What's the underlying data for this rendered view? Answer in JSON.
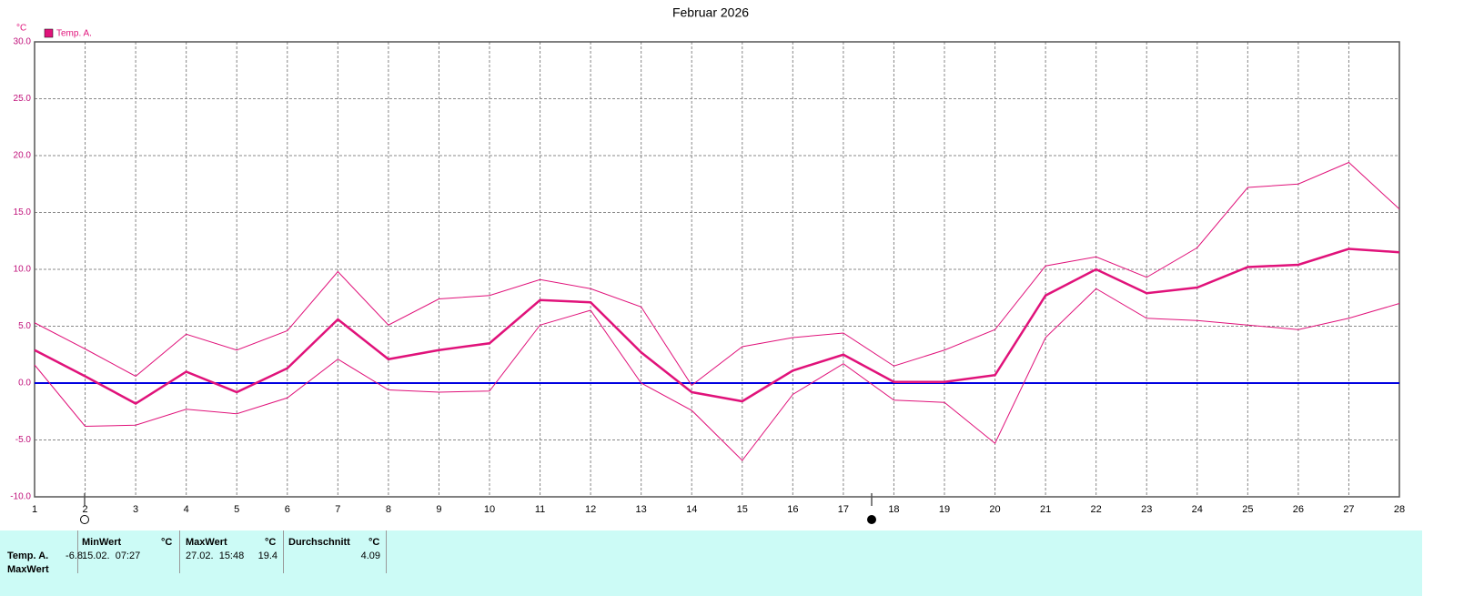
{
  "chart_data": {
    "type": "line",
    "title": "Februar 2026",
    "y_label": "°C",
    "legend": "Temp. A.",
    "legend_color": "#e0127a",
    "x": [
      1,
      2,
      3,
      4,
      5,
      6,
      7,
      8,
      9,
      10,
      11,
      12,
      13,
      14,
      15,
      16,
      17,
      18,
      19,
      20,
      21,
      22,
      23,
      24,
      25,
      26,
      27,
      28
    ],
    "xlim": [
      1,
      28
    ],
    "xticks": [
      1,
      2,
      3,
      4,
      5,
      6,
      7,
      8,
      9,
      10,
      11,
      12,
      13,
      14,
      15,
      16,
      17,
      18,
      19,
      20,
      21,
      22,
      23,
      24,
      25,
      26,
      27,
      28
    ],
    "ylim": [
      -10,
      30
    ],
    "yticks": [
      {
        "value": -10,
        "label": "-10.0"
      },
      {
        "value": -5,
        "label": "-5.0"
      },
      {
        "value": 0,
        "label": "0.0"
      },
      {
        "value": 5,
        "label": "5.0"
      },
      {
        "value": 10,
        "label": "10.0"
      },
      {
        "value": 15,
        "label": "15.0"
      },
      {
        "value": 20,
        "label": "20.0"
      },
      {
        "value": 25,
        "label": "25.0"
      },
      {
        "value": 30,
        "label": "30.0"
      }
    ],
    "grid": true,
    "zero_line_color": "#0000e0",
    "series": [
      {
        "color": "#e0127a",
        "line_width": 2.5,
        "values": [
          2.9,
          0.6,
          -1.8,
          1.0,
          -0.8,
          1.3,
          5.6,
          2.1,
          2.9,
          3.5,
          7.3,
          7.1,
          2.7,
          -0.8,
          -1.6,
          1.1,
          2.5,
          0.1,
          0.1,
          0.7,
          7.7,
          10.0,
          7.9,
          8.4,
          10.2,
          10.4,
          11.8,
          11.5
        ]
      },
      {
        "color": "#e0127a",
        "line_width": 1,
        "values": [
          5.3,
          3.0,
          0.6,
          4.3,
          2.9,
          4.6,
          9.8,
          5.1,
          7.4,
          7.7,
          9.1,
          8.3,
          6.7,
          -0.2,
          3.2,
          4.0,
          4.4,
          1.5,
          2.9,
          4.7,
          10.3,
          11.1,
          9.3,
          11.9,
          17.2,
          17.5,
          19.4,
          15.3
        ]
      },
      {
        "color": "#e0127a",
        "line_width": 1,
        "values": [
          1.6,
          -3.8,
          -3.7,
          -2.3,
          -2.7,
          -1.3,
          2.1,
          -0.6,
          -0.8,
          -0.7,
          5.1,
          6.4,
          0.0,
          -2.4,
          -6.8,
          -1.0,
          1.7,
          -1.5,
          -1.7,
          -5.3,
          4.0,
          8.3,
          5.7,
          5.5,
          5.1,
          4.7,
          5.7,
          7.0
        ]
      }
    ]
  },
  "table": {
    "headers": [
      "MinWert",
      "°C",
      "MaxWert",
      "°C",
      "Durchschnitt",
      "°C"
    ],
    "rows": [
      {
        "label": "Temp. A.",
        "min_time": "15.02.  07:27",
        "min": -6.8,
        "max_time": "27.02.  15:48",
        "max": 19.4,
        "avg": 4.09
      }
    ],
    "next_label": "MaxWert"
  }
}
